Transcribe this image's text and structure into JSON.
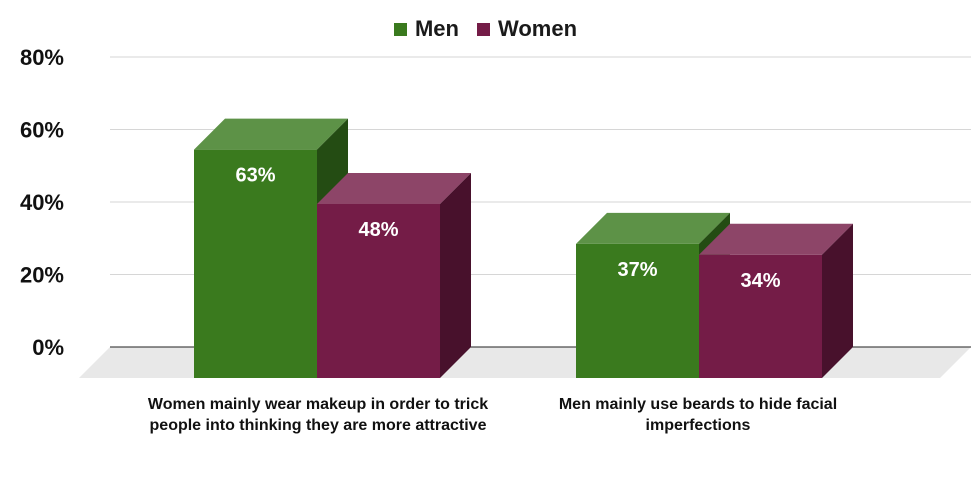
{
  "chart_data": {
    "type": "bar",
    "title": "",
    "xlabel": "",
    "ylabel": "",
    "ylim": [
      0,
      80
    ],
    "yticks": [
      "0%",
      "20%",
      "40%",
      "60%",
      "80%"
    ],
    "categories": [
      "Women mainly wear makeup in order to trick people into thinking they are more attractive",
      "Men mainly use beards to hide facial imperfections"
    ],
    "series": [
      {
        "name": "Men",
        "values": [
          63,
          37
        ],
        "labels": [
          "63%",
          "37%"
        ],
        "color": "#3a7a1e"
      },
      {
        "name": "Women",
        "values": [
          48,
          34
        ],
        "labels": [
          "48%",
          "34%"
        ],
        "color": "#741c47"
      }
    ],
    "grid": true,
    "legend": "top-center",
    "style": "3d-column"
  }
}
